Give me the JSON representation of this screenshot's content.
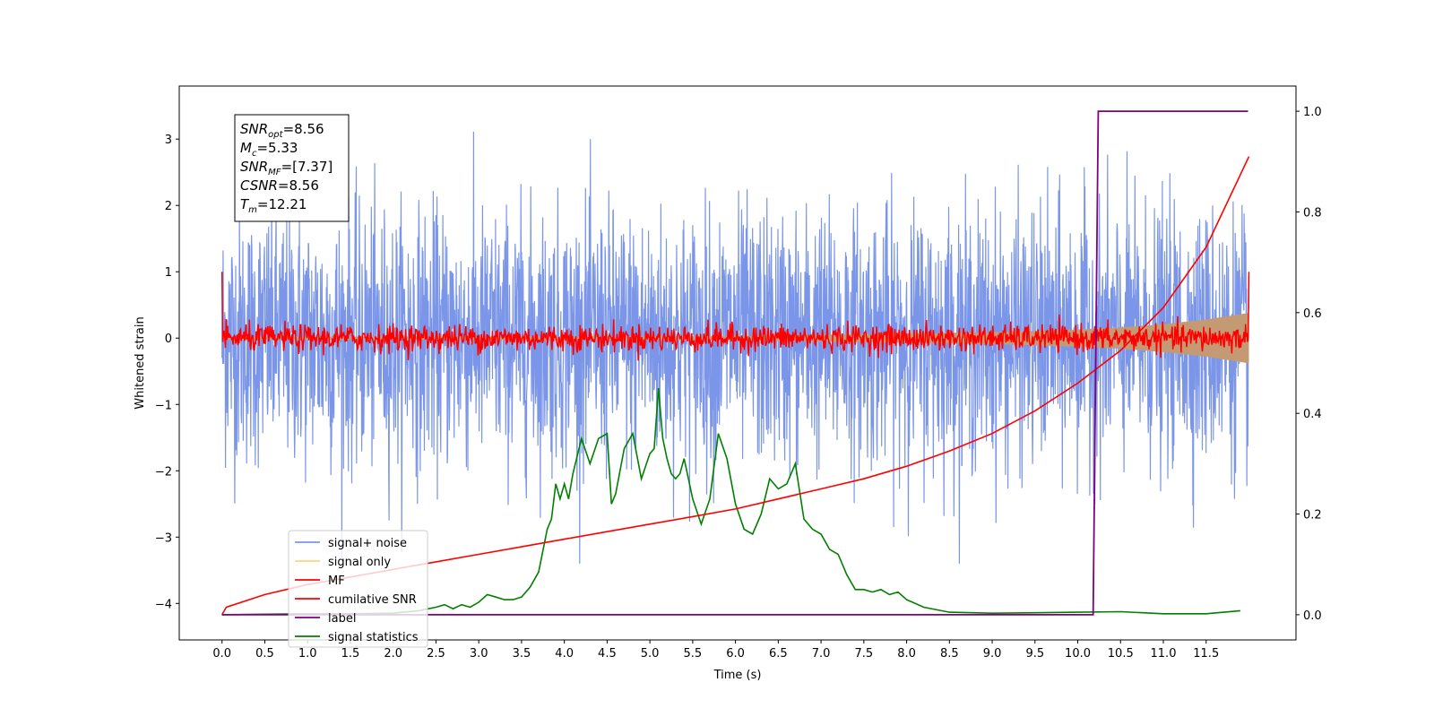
{
  "chart_data": {
    "type": "line",
    "xlabel": "Time (s)",
    "ylabel": "Whitened strain",
    "xlim": [
      -0.5,
      12.55
    ],
    "ylim": [
      -4.55,
      3.8
    ],
    "y2lim": [
      -0.05,
      1.05
    ],
    "x_ticks": [
      0.0,
      0.5,
      1.0,
      1.5,
      2.0,
      2.5,
      3.0,
      3.5,
      4.0,
      4.5,
      5.0,
      5.5,
      6.0,
      6.5,
      7.0,
      7.5,
      8.0,
      8.5,
      9.0,
      9.5,
      10.0,
      10.5,
      11.0,
      11.5
    ],
    "x_tick_labels": [
      "0.0",
      "0.5",
      "1.0",
      "1.5",
      "2.0",
      "2.5",
      "3.0",
      "3.5",
      "4.0",
      "4.5",
      "5.0",
      "5.5",
      "6.0",
      "6.5",
      "7.0",
      "7.5",
      "8.0",
      "8.5",
      "9.0",
      "9.5",
      "10.0",
      "10.5",
      "11.0",
      "11.5"
    ],
    "y_ticks": [
      -4,
      -3,
      -2,
      -1,
      0,
      1,
      2,
      3
    ],
    "y_tick_labels": [
      "−4",
      "−3",
      "−2",
      "−1",
      "0",
      "1",
      "2",
      "3"
    ],
    "y2_ticks": [
      0.0,
      0.2,
      0.4,
      0.6,
      0.8,
      1.0
    ],
    "y2_tick_labels": [
      "0.0",
      "0.2",
      "0.4",
      "0.6",
      "0.8",
      "1.0"
    ],
    "grid": false,
    "legend_position": "lower-left",
    "annotation_lines": [
      {
        "sym": "SNR",
        "sub": "opt",
        "value": "=8.56"
      },
      {
        "sym": "M",
        "sub": "c",
        "value": "=5.33"
      },
      {
        "sym": "SNR",
        "sub": "MF",
        "value": "=[7.37]"
      },
      {
        "sym": "CSNR",
        "sub": "",
        "value": "=8.56"
      },
      {
        "sym": "T",
        "sub": "m",
        "value": "=12.21"
      }
    ],
    "series": [
      {
        "name": "signal+ noise",
        "color": "#7b96e8",
        "axis": "left",
        "kind": "noise",
        "x_range": [
          0.0,
          12.0
        ],
        "envelope": 1.6,
        "peak": 3.4
      },
      {
        "name": "signal only",
        "color": "#ffd27a",
        "axis": "left",
        "kind": "chirp",
        "x": [
          0.0,
          6.0,
          7.0,
          8.0,
          9.0,
          10.0,
          10.5,
          11.0,
          11.5,
          12.0
        ],
        "amplitude": [
          0.02,
          0.03,
          0.05,
          0.07,
          0.09,
          0.13,
          0.16,
          0.21,
          0.28,
          0.38
        ]
      },
      {
        "name": "MF",
        "color": "#ff0000",
        "axis": "left",
        "kind": "noise",
        "x_range": [
          0.0,
          12.0
        ],
        "envelope": 0.18,
        "edge_value": 1.0
      },
      {
        "name": "cumilative SNR",
        "color": "#ff0000",
        "axis": "right",
        "x": [
          0.0,
          0.05,
          0.5,
          1.0,
          1.5,
          2.0,
          2.5,
          3.0,
          3.5,
          4.0,
          4.5,
          5.0,
          5.5,
          6.0,
          6.5,
          7.0,
          7.5,
          8.0,
          8.5,
          9.0,
          9.5,
          10.0,
          10.5,
          11.0,
          11.5,
          12.0
        ],
        "y": [
          0.0,
          0.015,
          0.04,
          0.06,
          0.075,
          0.09,
          0.105,
          0.12,
          0.135,
          0.15,
          0.165,
          0.18,
          0.195,
          0.21,
          0.23,
          0.25,
          0.27,
          0.295,
          0.325,
          0.36,
          0.405,
          0.46,
          0.525,
          0.61,
          0.73,
          0.91
        ]
      },
      {
        "name": "label",
        "color": "#800080",
        "axis": "right",
        "x": [
          0.0,
          10.18,
          10.24,
          11.99
        ],
        "y": [
          0.0,
          0.0,
          1.0,
          1.0
        ]
      },
      {
        "name": "signal statistics",
        "color": "#008000",
        "axis": "right",
        "x": [
          0.0,
          0.5,
          1.0,
          1.5,
          2.0,
          2.3,
          2.5,
          2.6,
          2.7,
          2.8,
          2.9,
          3.0,
          3.1,
          3.2,
          3.3,
          3.4,
          3.5,
          3.6,
          3.7,
          3.8,
          3.85,
          3.9,
          3.95,
          4.0,
          4.05,
          4.1,
          4.2,
          4.3,
          4.4,
          4.5,
          4.55,
          4.6,
          4.7,
          4.8,
          4.9,
          5.0,
          5.05,
          5.1,
          5.15,
          5.2,
          5.25,
          5.3,
          5.35,
          5.4,
          5.5,
          5.6,
          5.7,
          5.8,
          5.9,
          6.0,
          6.1,
          6.2,
          6.3,
          6.4,
          6.5,
          6.6,
          6.7,
          6.8,
          6.9,
          7.0,
          7.1,
          7.2,
          7.3,
          7.4,
          7.5,
          7.6,
          7.7,
          7.8,
          7.9,
          8.0,
          8.2,
          8.5,
          9.0,
          9.5,
          10.0,
          10.5,
          11.0,
          11.5,
          11.9
        ],
        "y": [
          0.0,
          0.001,
          0.002,
          0.002,
          0.003,
          0.008,
          0.015,
          0.02,
          0.012,
          0.02,
          0.015,
          0.025,
          0.04,
          0.035,
          0.03,
          0.03,
          0.035,
          0.055,
          0.085,
          0.17,
          0.19,
          0.26,
          0.23,
          0.26,
          0.23,
          0.28,
          0.35,
          0.3,
          0.35,
          0.36,
          0.22,
          0.24,
          0.33,
          0.36,
          0.27,
          0.32,
          0.33,
          0.45,
          0.35,
          0.31,
          0.28,
          0.27,
          0.28,
          0.31,
          0.23,
          0.18,
          0.23,
          0.36,
          0.31,
          0.22,
          0.17,
          0.16,
          0.2,
          0.27,
          0.25,
          0.26,
          0.3,
          0.19,
          0.17,
          0.16,
          0.13,
          0.12,
          0.08,
          0.05,
          0.05,
          0.045,
          0.05,
          0.04,
          0.045,
          0.03,
          0.015,
          0.005,
          0.003,
          0.004,
          0.005,
          0.006,
          0.002,
          0.002,
          0.008
        ]
      }
    ]
  }
}
